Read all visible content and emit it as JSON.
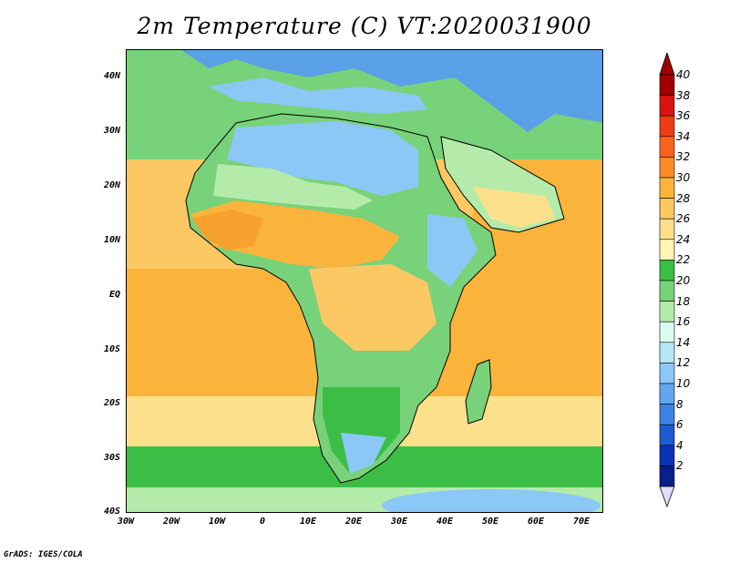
{
  "title": "2m Temperature (C) VT:2020031900",
  "footer": "GrADS: IGES/COLA",
  "lat_labels": [
    "40N",
    "30N",
    "20N",
    "10N",
    "EQ",
    "10S",
    "20S",
    "30S",
    "40S"
  ],
  "lon_labels": [
    "30W",
    "20W",
    "10W",
    "0",
    "10E",
    "20E",
    "30E",
    "40E",
    "50E",
    "60E",
    "70E"
  ],
  "colorbar": {
    "levels": [
      "40",
      "38",
      "36",
      "34",
      "32",
      "30",
      "28",
      "26",
      "24",
      "22",
      "20",
      "18",
      "16",
      "14",
      "12",
      "10",
      "8",
      "6",
      "4",
      "2"
    ],
    "colors_top_to_bottom": [
      "#a00000",
      "#d81414",
      "#f03c14",
      "#f8641e",
      "#fa8c28",
      "#fab43c",
      "#fcc864",
      "#fde08c",
      "#fff5b4",
      "#3cbe46",
      "#78d27a",
      "#b4ebaa",
      "#dcfaf0",
      "#b4e6f5",
      "#8cc8f5",
      "#64a5f0",
      "#3c82e6",
      "#1e5ad2",
      "#0a32b4",
      "#0a1e8c"
    ],
    "upper_arrow_color": "#a00000",
    "lower_arrow_color": "#e6dcff"
  },
  "map": {
    "extent": {
      "lon": [
        -30,
        75
      ],
      "lat": [
        -40,
        45
      ]
    },
    "ocean_warm_color": "#fab43c",
    "ocean_mid_color": "#fcc864",
    "ocean_cool_color": "#3cbe46",
    "land_hot_color": "#f8a030",
    "land_cool_color": "#5aa0e6"
  }
}
